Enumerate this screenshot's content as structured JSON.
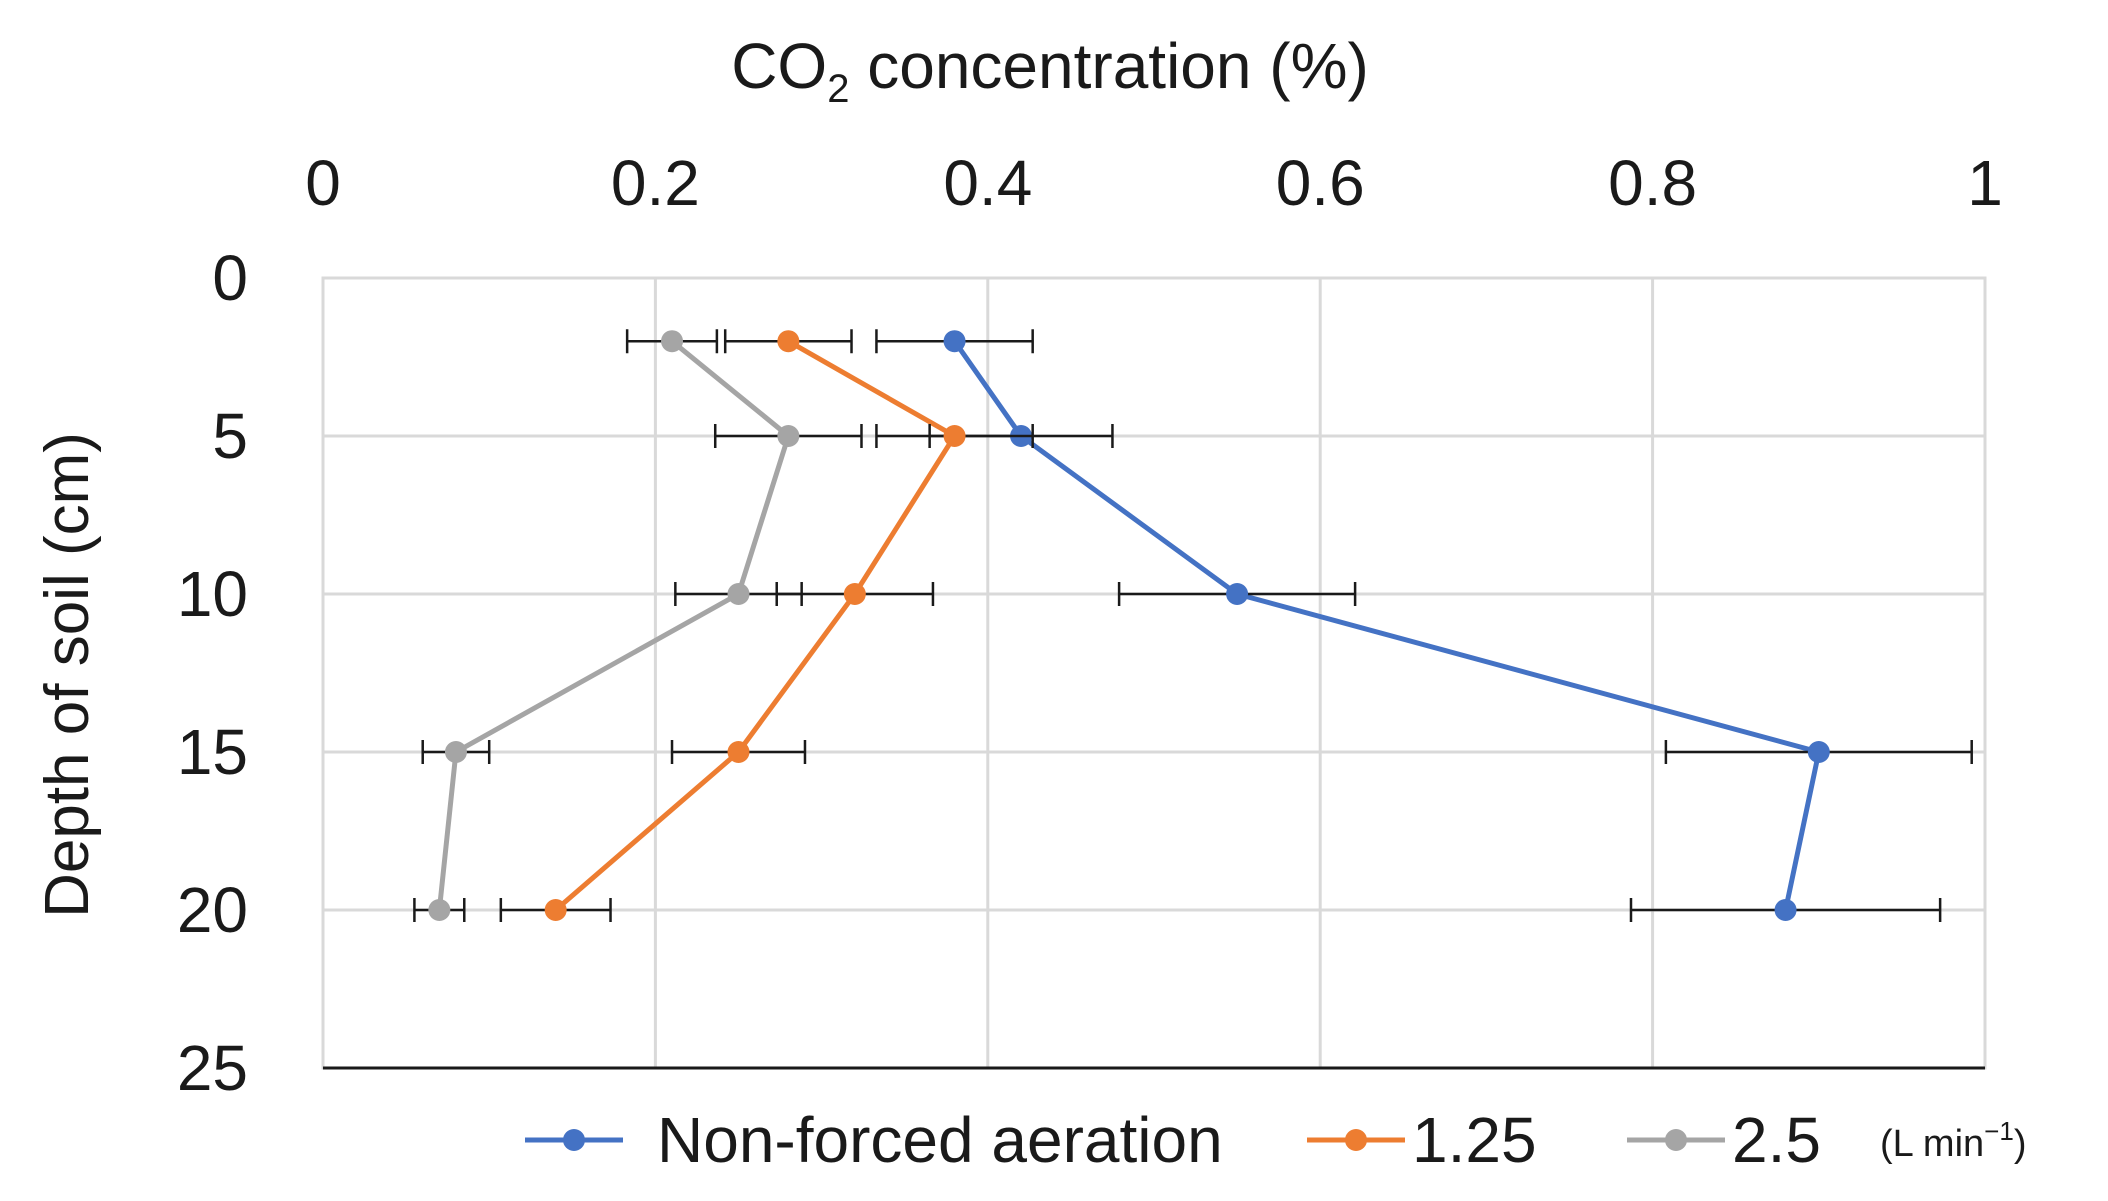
{
  "chart_data": {
    "type": "line",
    "title": "",
    "xlabel_main": "CO",
    "xlabel_sub": "2",
    "xlabel_rest": " concentration  (%)",
    "ylabel": "Depth of soil (cm)",
    "xlim": [
      0,
      1
    ],
    "ylim": [
      0,
      25
    ],
    "x_axis_position": "top",
    "y_axis_inverted": true,
    "grid": true,
    "x_ticks": [
      "0",
      "0.2",
      "0.4",
      "0.6",
      "0.8",
      "1"
    ],
    "x_tick_values": [
      0,
      0.2,
      0.4,
      0.6,
      0.8,
      1
    ],
    "y_ticks": [
      "0",
      "5",
      "10",
      "15",
      "20",
      "25"
    ],
    "y_tick_values": [
      0,
      5,
      10,
      15,
      20,
      25
    ],
    "legend_position": "bottom",
    "legend_unit_prefix": "(L min",
    "legend_unit_sup": "−1",
    "legend_unit_suffix": ")",
    "series": [
      {
        "name": "Non-forced aeration",
        "color": "#4472c4",
        "depth": [
          2,
          5,
          10,
          15,
          20
        ],
        "values": [
          0.38,
          0.42,
          0.55,
          0.9,
          0.88
        ],
        "error": [
          0.047,
          0.055,
          0.071,
          0.092,
          0.093
        ]
      },
      {
        "name": "1.25",
        "color": "#ed7d31",
        "depth": [
          2,
          5,
          10,
          20,
          15
        ],
        "values": [
          0.28,
          0.38,
          0.32,
          0.14,
          0.25
        ],
        "error": [
          0.038,
          0.047,
          0.047,
          0.033,
          0.04
        ]
      },
      {
        "name": "2.5",
        "color": "#a5a5a5",
        "depth": [
          2,
          5,
          10,
          15,
          20
        ],
        "values": [
          0.21,
          0.28,
          0.25,
          0.08,
          0.07
        ],
        "error": [
          0.027,
          0.044,
          0.038,
          0.02,
          0.015
        ]
      }
    ]
  }
}
